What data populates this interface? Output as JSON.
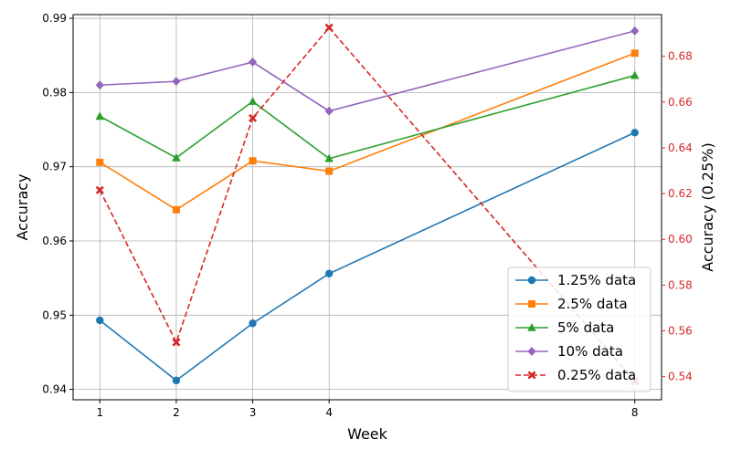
{
  "chart_data": {
    "type": "line",
    "x": [
      1,
      2,
      3,
      4,
      8
    ],
    "xlabel": "Week",
    "ylabel": "Accuracy",
    "ylabel_right": "Accuracy (0.25%)",
    "xlim": [
      0.65,
      8.35
    ],
    "ylim": [
      0.9386,
      0.9905
    ],
    "ylim_right": [
      0.5299,
      0.6982
    ],
    "xticks": [
      "1",
      "2",
      "3",
      "4",
      "8"
    ],
    "yticks": [
      "0.94",
      "0.95",
      "0.96",
      "0.97",
      "0.98",
      "0.99"
    ],
    "yticks_right": [
      "0.54",
      "0.56",
      "0.58",
      "0.60",
      "0.62",
      "0.64",
      "0.66",
      "0.68"
    ],
    "grid": true,
    "legend_position": "bottom-right",
    "right_axis_color": "#d62728",
    "series": [
      {
        "name": "1.25% data",
        "axis": "left",
        "color": "#1f77b4",
        "marker": "circle",
        "dashed": false,
        "values": [
          0.9493,
          0.9412,
          0.9489,
          0.9556,
          0.9746
        ]
      },
      {
        "name": "2.5% data",
        "axis": "left",
        "color": "#ff7f0e",
        "marker": "square",
        "dashed": false,
        "values": [
          0.9706,
          0.9642,
          0.9708,
          0.9694,
          0.9853
        ]
      },
      {
        "name": "5% data",
        "axis": "left",
        "color": "#2ca02c",
        "marker": "triangle",
        "dashed": false,
        "values": [
          0.9768,
          0.9712,
          0.9788,
          0.9711,
          0.9823
        ]
      },
      {
        "name": "10% data",
        "axis": "left",
        "color": "#9467bd",
        "marker": "diamond",
        "dashed": false,
        "values": [
          0.981,
          0.9815,
          0.9841,
          0.9775,
          0.9883
        ]
      },
      {
        "name": "0.25% data",
        "axis": "right",
        "color": "#d62728",
        "marker": "x",
        "dashed": true,
        "values": [
          0.6215,
          0.555,
          0.653,
          0.6925,
          0.538
        ]
      }
    ]
  }
}
